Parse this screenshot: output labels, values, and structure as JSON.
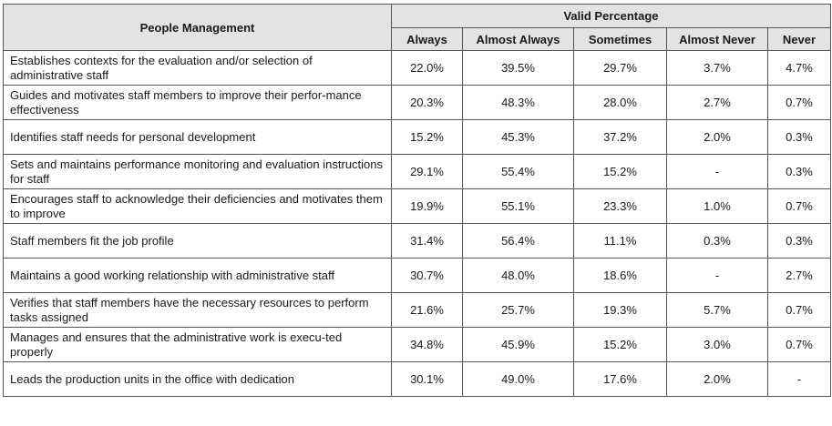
{
  "table": {
    "header": {
      "first_column": "People Management",
      "group_label": "Valid Percentage",
      "columns": [
        "Always",
        "Almost Always",
        "Sometimes",
        "Almost Never",
        "Never"
      ]
    },
    "rows": [
      {
        "label": "Establishes contexts for the evaluation and/or selection of administrative staff",
        "values": [
          "22.0%",
          "39.5%",
          "29.7%",
          "3.7%",
          "4.7%"
        ]
      },
      {
        "label": "Guides and motivates staff members to improve their perfor-mance effectiveness",
        "values": [
          "20.3%",
          "48.3%",
          "28.0%",
          "2.7%",
          "0.7%"
        ]
      },
      {
        "label": "Identifies staff needs for personal development",
        "values": [
          "15.2%",
          "45.3%",
          "37.2%",
          "2.0%",
          "0.3%"
        ]
      },
      {
        "label": "Sets and maintains performance monitoring and evaluation instructions for staff",
        "values": [
          "29.1%",
          "55.4%",
          "15.2%",
          "-",
          "0.3%"
        ]
      },
      {
        "label": "Encourages staff to acknowledge their deficiencies and motivates them to improve",
        "values": [
          "19.9%",
          "55.1%",
          "23.3%",
          "1.0%",
          "0.7%"
        ]
      },
      {
        "label": "Staff members fit the job profile",
        "values": [
          "31.4%",
          "56.4%",
          "11.1%",
          "0.3%",
          "0.3%"
        ]
      },
      {
        "label": "Maintains a good working relationship with administrative staff",
        "values": [
          "30.7%",
          "48.0%",
          "18.6%",
          "-",
          "2.7%"
        ]
      },
      {
        "label": "Verifies that staff members have the necessary resources to perform tasks assigned",
        "values": [
          "21.6%",
          "25.7%",
          "19.3%",
          "5.7%",
          "0.7%"
        ]
      },
      {
        "label": "Manages and ensures that the administrative work is execu-ted properly",
        "values": [
          "34.8%",
          "45.9%",
          "15.2%",
          "3.0%",
          "0.7%"
        ]
      },
      {
        "label": "Leads the production units in the office with dedication",
        "values": [
          "30.1%",
          "49.0%",
          "17.6%",
          "2.0%",
          "-"
        ]
      }
    ]
  }
}
